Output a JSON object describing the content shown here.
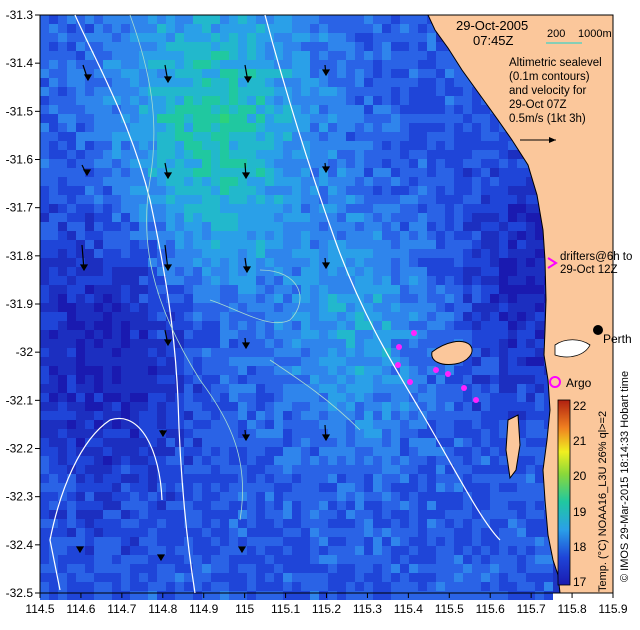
{
  "header": {
    "date": "29-Oct-2005",
    "time": "07:45Z",
    "scale_label": "200",
    "scale_label2": "1000m"
  },
  "info": {
    "lines": [
      "Altimetric sealevel",
      "(0.1m contours)",
      "and velocity for",
      "29-Oct 07Z",
      "0.5m/s (1kt 3h)"
    ]
  },
  "drifters": {
    "line1": "drifters@6h to",
    "line2": "29-Oct 12Z"
  },
  "places": {
    "perth": "Perth",
    "argo": "Argo"
  },
  "colorbar": {
    "ticks": [
      "22",
      "21",
      "20",
      "19",
      "18",
      "17"
    ],
    "title": "Temp. (°C) NOAA16_L3U 26% ql>=2"
  },
  "credit": "© IMOS 29-Mar-2015 18:14:33 Hobart time",
  "axes": {
    "x_ticks": [
      "114.5",
      "114.6",
      "114.7",
      "114.8",
      "114.9",
      "115",
      "115.1",
      "115.2",
      "115.3",
      "115.4",
      "115.5",
      "115.6",
      "115.7",
      "115.8",
      "115.9"
    ],
    "y_ticks": [
      "-31.3",
      "-31.4",
      "-31.5",
      "-31.6",
      "-31.7",
      "-31.8",
      "-31.9",
      "-32",
      "-32.1",
      "-32.2",
      "-32.3",
      "-32.4",
      "-32.5"
    ]
  },
  "colors": {
    "land": "#fbc79b",
    "argo": "#ff00ff",
    "drifter": "#ff22ff",
    "contour": "#a8dcd0",
    "scale_bar": "#5fd0c0"
  },
  "icons": [
    "arrow-icon",
    "drifter-marker-icon",
    "argo-circle-icon",
    "city-dot-icon"
  ]
}
